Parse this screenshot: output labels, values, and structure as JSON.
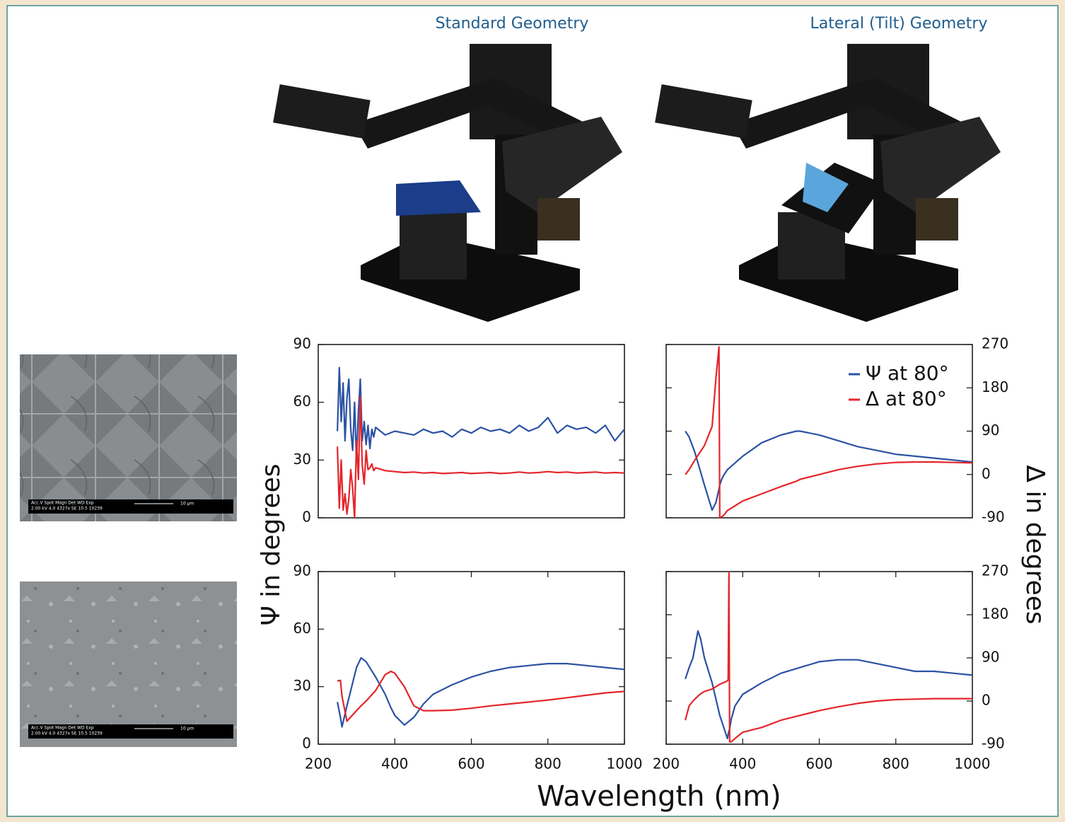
{
  "columns": [
    "Standard Geometry",
    "Lateral (Tilt) Geometry"
  ],
  "axis_labels": {
    "y": "Ψ in degrees",
    "y2": "Δ in degrees",
    "x": "Wavelength (nm)"
  },
  "images": [
    {
      "caption_lines": [
        "Acc.V   Spot Magn    Det  WD  Exp",
        "2.00 kV 4.0   4327x   SE  10.5 10239"
      ],
      "scale": "10 µm"
    },
    {
      "caption_lines": [
        "Acc.V   Spot Magn    Det  WD  Exp",
        "2.00 kV 4.0   4327x   SE  10.5 10239"
      ],
      "scale": "10 µm"
    }
  ],
  "chart_data": [
    {
      "type": "line",
      "xlim": [
        200,
        1000
      ],
      "ylim": [
        0,
        90
      ],
      "y2lim": [
        -90,
        270
      ],
      "yticks": [
        0,
        30,
        60,
        90
      ],
      "x": [
        250,
        255,
        260,
        265,
        270,
        275,
        280,
        285,
        290,
        295,
        300,
        305,
        310,
        315,
        320,
        325,
        330,
        335,
        340,
        345,
        350,
        375,
        400,
        425,
        450,
        475,
        500,
        525,
        550,
        575,
        600,
        625,
        650,
        675,
        700,
        725,
        750,
        775,
        800,
        825,
        850,
        875,
        900,
        925,
        950,
        975,
        1000
      ],
      "series": [
        {
          "color": "#2b52a3",
          "values": [
            45,
            78,
            50,
            70,
            40,
            62,
            72,
            46,
            35,
            60,
            30,
            55,
            72,
            40,
            50,
            38,
            48,
            36,
            46,
            42,
            47,
            43,
            45,
            44,
            43,
            46,
            44,
            45,
            42,
            46,
            44,
            47,
            45,
            46,
            44,
            48,
            45,
            47,
            52,
            44,
            48,
            46,
            47,
            44,
            48,
            40,
            46
          ]
        },
        {
          "color": "#e3262c",
          "axis": "y2",
          "values": [
            58,
            -70,
            30,
            -74,
            -40,
            -82,
            -50,
            10,
            -30,
            -90,
            70,
            -10,
            162,
            20,
            -20,
            50,
            10,
            14,
            22,
            8,
            14,
            8,
            6,
            4,
            5,
            3,
            4,
            2,
            3,
            4,
            2,
            3,
            4,
            2,
            3,
            5,
            3,
            4,
            6,
            4,
            5,
            3,
            4,
            5,
            3,
            4,
            3
          ]
        }
      ]
    },
    {
      "type": "line",
      "xlim": [
        200,
        1000
      ],
      "ylim": [
        0,
        90
      ],
      "y2lim": [
        -90,
        270
      ],
      "y2ticks": [
        -90,
        0,
        90,
        180,
        270
      ],
      "legend": "upper right",
      "x": [
        250,
        260,
        275,
        300,
        320,
        330,
        338,
        340,
        345,
        350,
        360,
        400,
        450,
        500,
        540,
        550,
        600,
        650,
        700,
        750,
        800,
        850,
        900,
        950,
        1000
      ],
      "series": [
        {
          "name": "Ψ at 80°",
          "color": "#2b52a3",
          "values": [
            45,
            42,
            34,
            17,
            4,
            8,
            15,
            17,
            20,
            22,
            25,
            32,
            39,
            43,
            45,
            45,
            43,
            40,
            37,
            35,
            33,
            32,
            31,
            30,
            29
          ]
        },
        {
          "name": "Δ at 80°",
          "color": "#e3262c",
          "axis": "y2",
          "values": [
            0,
            10,
            30,
            60,
            100,
            200,
            265,
            -90,
            -88,
            -85,
            -75,
            -55,
            -40,
            -25,
            -14,
            -10,
            0,
            10,
            17,
            22,
            25,
            26,
            26,
            25,
            24
          ]
        }
      ]
    },
    {
      "type": "line",
      "xlim": [
        200,
        1000
      ],
      "ylim": [
        0,
        90
      ],
      "y2lim": [
        -90,
        270
      ],
      "yticks": [
        0,
        30,
        60,
        90
      ],
      "xticks": [
        200,
        400,
        600,
        800,
        1000
      ],
      "x": [
        250,
        258,
        262,
        275,
        300,
        312,
        325,
        350,
        375,
        390,
        400,
        425,
        450,
        475,
        500,
        550,
        600,
        650,
        700,
        750,
        800,
        850,
        900,
        950,
        1000
      ],
      "series": [
        {
          "color": "#2b52a3",
          "values": [
            22,
            14,
            9,
            20,
            40,
            45,
            43,
            35,
            26,
            19,
            15,
            10,
            14,
            21,
            26,
            31,
            35,
            38,
            40,
            41,
            42,
            42,
            41,
            40,
            39
          ]
        },
        {
          "color": "#e3262c",
          "axis": "y2",
          "values": [
            42,
            43,
            10,
            -42,
            -20,
            -10,
            0,
            22,
            55,
            62,
            58,
            30,
            -10,
            -20,
            -20,
            -19,
            -15,
            -10,
            -6,
            -2,
            2,
            7,
            12,
            17,
            20
          ]
        }
      ]
    },
    {
      "type": "line",
      "xlim": [
        200,
        1000
      ],
      "ylim": [
        0,
        90
      ],
      "y2lim": [
        -90,
        270
      ],
      "y2ticks": [
        -90,
        0,
        90,
        180,
        270
      ],
      "xticks": [
        200,
        400,
        600,
        800,
        1000
      ],
      "x": [
        250,
        260,
        270,
        283,
        290,
        300,
        320,
        340,
        355,
        360,
        362,
        364,
        366,
        370,
        380,
        400,
        450,
        500,
        550,
        600,
        650,
        700,
        750,
        800,
        850,
        900,
        950,
        1000
      ],
      "series": [
        {
          "color": "#2b52a3",
          "values": [
            34,
            40,
            45,
            59,
            55,
            45,
            32,
            15,
            6,
            3,
            5,
            7,
            8,
            13,
            20,
            26,
            32,
            37,
            40,
            43,
            44,
            44,
            42,
            40,
            38,
            38,
            37,
            36
          ]
        },
        {
          "color": "#e3262c",
          "axis": "y2",
          "values": [
            -40,
            -10,
            0,
            10,
            15,
            20,
            25,
            35,
            40,
            42,
            45,
            270,
            -85,
            -85,
            -78,
            -65,
            -55,
            -40,
            -30,
            -20,
            -12,
            -5,
            0,
            3,
            4,
            5,
            5,
            5
          ]
        }
      ]
    }
  ]
}
